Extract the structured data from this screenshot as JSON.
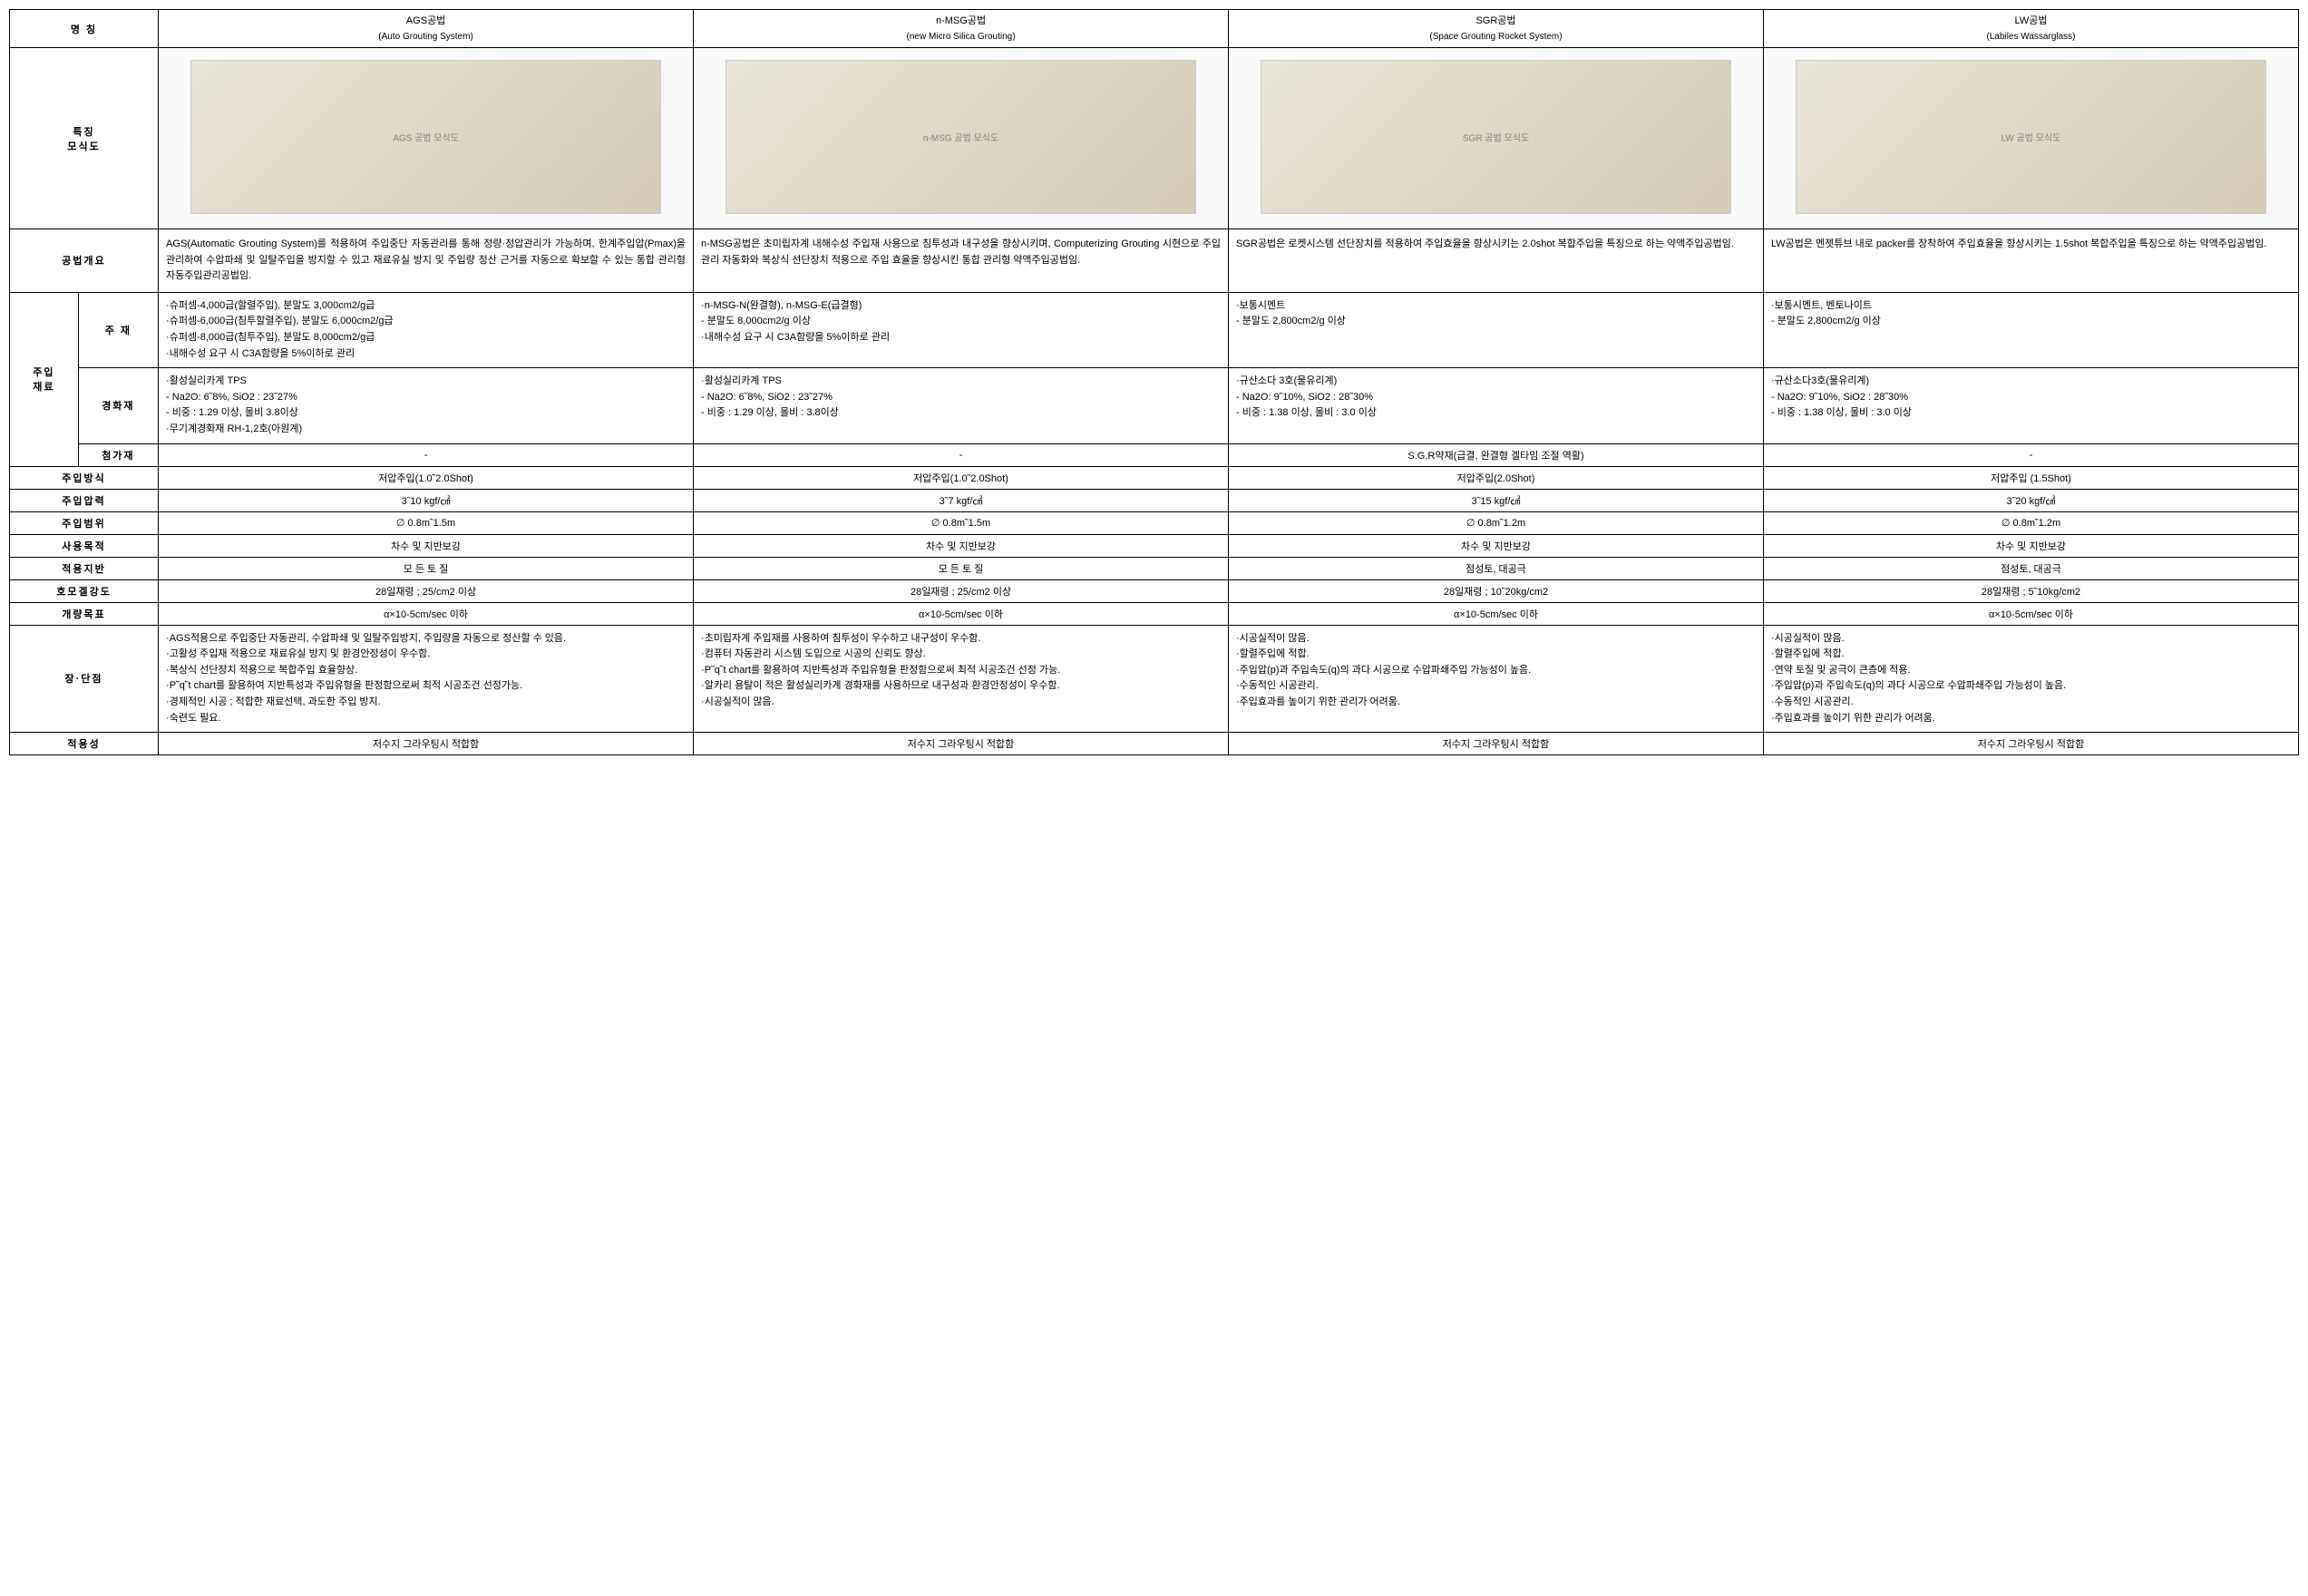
{
  "headers": {
    "name": "명    칭",
    "diagram": "특징\n모식도",
    "overview": "공법개요",
    "materials": "주입\n재료",
    "main_mat": "주 재",
    "hardener": "경화재",
    "additive": "첨가재",
    "method": "주입방식",
    "pressure": "주입압력",
    "range": "주입범위",
    "purpose": "사용목적",
    "ground": "적용지반",
    "strength": "호모겔강도",
    "target": "개량목표",
    "proscons": "장·단점",
    "applicability": "적용성"
  },
  "methods": {
    "ags": {
      "title_ko": "AGS공법",
      "title_en": "(Auto Grouting System)",
      "diagram_label": "AGS 공법 모식도",
      "overview": "AGS(Automatic Grouting System)를 적용하여 주입중단 자동관리를 통해 정량·정압관리가 가능하며, 한계주입압(Pmax)을 관리하여 수압파쇄 및 일탈주입을 방지할 수 있고 재료유실 방지 및 주입량 정산 근거를 자동으로 확보할 수 있는 통합 관리형 자동주입관리공법임.",
      "main_mat": "·슈퍼셈-4,000급(할렬주입), 분말도 3,000cm2/g급\n·슈퍼셈-6,000급(침투할렬주입), 분말도 6,000cm2/g급\n·슈퍼셈-8,000급(침투주입), 분말도 8,000cm2/g급\n·내해수성 요구 시 C3A함량을 5%이하로 관리",
      "hardener": "·활성실리카계 TPS\n  - Na2O: 6˜8%, SiO2 : 23˜27%\n  - 비중 : 1.29 이상, 몰비 3.8이상\n·무기계경화재 RH-1,2호(아원계)",
      "additive": "-",
      "method": "저압주입(1.0˜2.0Shot)",
      "pressure": "3˜10 kgf/㎠",
      "range": "∅ 0.8m˜1.5m",
      "purpose": "차수 및 지반보강",
      "ground": "모 든 토 질",
      "strength": "28일재령 ; 25/cm2 이상",
      "target": "α×10-5cm/sec 이하",
      "proscons": "·AGS적용으로 주입중단 자동관리, 수압파쇄 및 일탈주입방지, 주입량을 자동으로 정산할 수 있음.\n·고활성 주입재 적용으로 재료유실 방지 및 환경안정성이 우수함.\n·복상식 선단장치 적용으로 복합주입 효율향상.\n·P˜q˜t chart를 활용하여 지반특성과 주입유형을 판정함으로써 최적 시공조건 선정가능.\n·경제적인 시공 ; 적합한 재료선택, 과도한 주입 방지.\n·숙련도 필요.",
      "applicability": "저수지 그라우팅시 적합함"
    },
    "nmsg": {
      "title_ko": "n-MSG공법",
      "title_en": "(new Micro Silica Grouting)",
      "diagram_label": "n-MSG 공법 모식도",
      "overview": "n-MSG공법은 초미립자계 내해수성 주입재 사용으로 침투성과   내구성을   향상시키며,   Computerizing Grouting 시현으로 주입관리 자동화와 복상식 선단장치 적용으로 주입 효율을 향상시킨 통합 관리형 약액주입공법임.",
      "main_mat": "·n-MSG-N(완결형), n-MSG-E(급결형)\n  - 분말도 8,000cm2/g 이상\n·내해수성 요구 시 C3A함량을 5%이하로 관리",
      "hardener": "·활성실리카계 TPS\n  - Na2O: 6˜8%, SiO2 : 23˜27%\n  - 비중 : 1.29 이상, 몰비 : 3.8이상",
      "additive": "-",
      "method": "저압주입(1.0˜2.0Shot)",
      "pressure": "3˜7 kgf/㎠",
      "range": "∅ 0.8m˜1.5m",
      "purpose": "차수 및 지반보강",
      "ground": "모 든 토 질",
      "strength": "28일재령 ; 25/cm2 이상",
      "target": "α×10-5cm/sec 이하",
      "proscons": "·초미립자계 주입재를 사용하여 침투성이 우수하고 내구성이 우수함.\n·컴퓨터 자동관리 시스템 도입으로 시공의 신뢰도 향상.\n·P˜q˜t chart를 활용하여 지반특성과 주입유형을 판정함으로써 최적 시공조건 선정 가능.\n·알카리 용탈이 적은 활성실리카계 경화재를 사용하므로 내구성과 환경안정성이 우수함.\n·시공실적이 많음.",
      "applicability": "저수지 그라우팅시 적합함"
    },
    "sgr": {
      "title_ko": "SGR공법",
      "title_en": "(Space Grouting Rocket System)",
      "diagram_label": "SGR 공법 모식도",
      "overview": "SGR공법은 로켓시스템 선단장치를 적용하여 주입효율을 향상시키는 2.0shot 복합주입을 특징으로 하는 약액주입공법임.",
      "main_mat": "·보통시멘트\n  - 분말도 2,800cm2/g 이상",
      "hardener": "·규산소다 3호(물유리계)\n  - Na2O: 9˜10%, SiO2 : 28˜30%\n  - 비중 : 1.38 이상, 몰비 : 3.0 이상",
      "additive": "S.G.R약재(급결, 완결형 겔타임 조절 역활)",
      "method": "저압주입(2.0Shot)",
      "pressure": "3˜15 kgf/㎠",
      "range": "∅ 0.8m˜1.2m",
      "purpose": "차수 및 지반보강",
      "ground": "점성토, 대공극",
      "strength": "28일재령 ; 10˜20kg/cm2",
      "target": "α×10-5cm/sec 이하",
      "proscons": "·시공실적이 많음.\n·할렬주입에 적합.\n·주입압(p)과 주입속도(q)의 과다 시공으로 수압파쇄주입 가능성이 높음.\n·수동적인 시공관리.\n·주입효과를 높이기 위한 관리가 어려움.",
      "applicability": "저수지 그라우팅시 적합함"
    },
    "lw": {
      "title_ko": "LW공법",
      "title_en": "(Labiles Wassarglass)",
      "diagram_label": "LW 공법 모식도",
      "overview": "LW공법은 멘젯튜브 내로 packer를 장착하여 주입효율을 향상시키는 1.5shot 복합주입을 특징으로 하는 약액주입공법임.",
      "main_mat": "·보통시멘트, 벤토나이트\n  - 분말도 2,800cm2/g 이상",
      "hardener": "·규산소다3호(물유리계)\n  - Na2O: 9˜10%, SiO2 : 28˜30%\n  - 비중 : 1.38 이상, 몰비 : 3.0 이상",
      "additive": "-",
      "method": "저압주입 (1.5Shot)",
      "pressure": "3˜20 kgf/㎠",
      "range": "∅ 0.8m˜1.2m",
      "purpose": "차수 및 지반보강",
      "ground": "점성토, 대공극",
      "strength": "28일재령 ; 5˜10kg/cm2",
      "target": "α×10-5cm/sec 이하",
      "proscons": "·시공실적이 많음.\n·할렬주입에 적합.\n·연약 토질 및 공극이 큰층에 적용.\n·주입압(p)과 주입속도(q)의 과다 시공으로 수압파쇄주입 가능성이 높음.\n·수동적인 시공관리.\n·주입효과를 높이기 위한 관리가 어려움.",
      "applicability": "저수지 그라우팅시 적합함"
    }
  }
}
